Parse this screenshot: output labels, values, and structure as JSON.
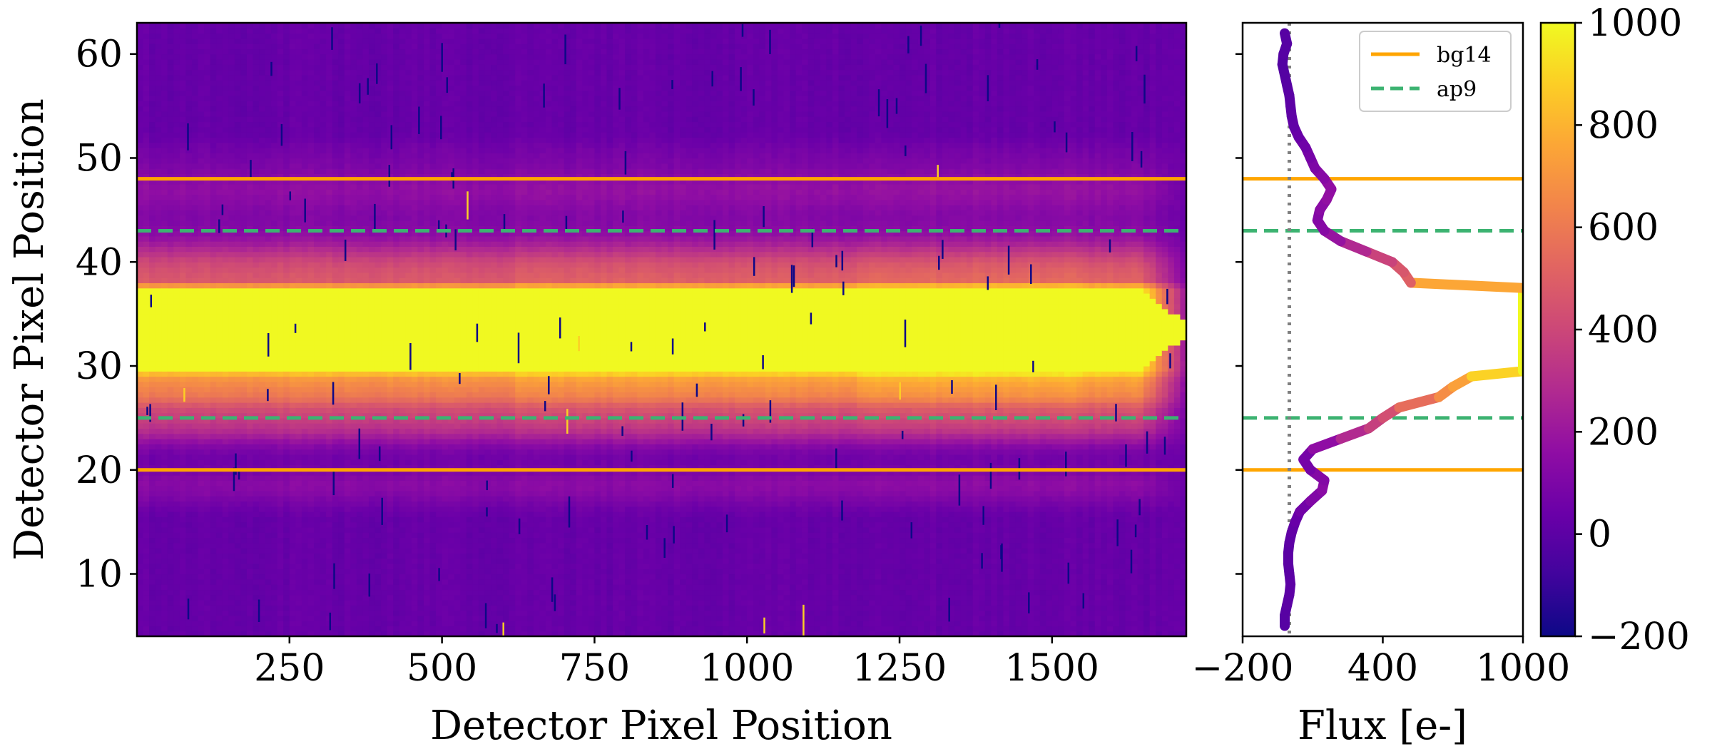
{
  "chart_data": [
    {
      "type": "heatmap",
      "xlabel": "Detector Pixel Position",
      "ylabel": "Detector Pixel Position",
      "xlim": [
        0,
        1720
      ],
      "ylim": [
        4,
        63
      ],
      "xticks": [
        250,
        500,
        750,
        1000,
        1250,
        1500
      ],
      "yticks": [
        10,
        20,
        30,
        40,
        50,
        60
      ],
      "colormap": "plasma",
      "color_range": [
        -200,
        1000
      ],
      "background_level": 30,
      "source_rows": {
        "center": 33.5,
        "saturated_min": 29.5,
        "saturated_max": 37.5
      },
      "column_steps": [
        620,
        1180,
        1550
      ],
      "horizontal_lines": [
        {
          "y": 48,
          "style": "solid",
          "color": "#ffa500"
        },
        {
          "y": 43,
          "style": "dashed",
          "color": "#3cb371"
        },
        {
          "y": 25,
          "style": "dashed",
          "color": "#3cb371"
        },
        {
          "y": 20,
          "style": "solid",
          "color": "#ffa500"
        }
      ]
    },
    {
      "type": "line",
      "xlabel": "Flux [e-]",
      "ylabel": "",
      "xlim": [
        -200,
        1000
      ],
      "ylim": [
        4,
        63
      ],
      "xticks": [
        -200,
        400,
        1000
      ],
      "xtick_labels": [
        "−200",
        "400",
        "1000"
      ],
      "yticks": [
        10,
        20,
        30,
        40,
        50,
        60
      ],
      "vertical_reference": {
        "x": 0,
        "style": "dotted",
        "color": "#808080"
      },
      "profile": {
        "y": [
          5,
          6,
          7,
          8,
          9,
          10,
          11,
          12,
          13,
          14,
          15,
          16,
          17,
          18,
          19,
          20,
          21,
          22,
          23,
          24,
          25,
          26,
          27,
          28,
          29,
          29.5,
          37.5,
          38,
          39,
          40,
          41,
          42,
          43,
          44,
          45,
          46,
          47,
          48,
          49,
          50,
          51,
          52,
          53,
          54,
          55,
          56,
          57,
          58,
          59,
          60,
          61,
          62
        ],
        "flux": [
          -20,
          -20,
          -10,
          0,
          5,
          0,
          -5,
          -5,
          0,
          10,
          25,
          45,
          90,
          140,
          150,
          90,
          60,
          100,
          220,
          340,
          400,
          470,
          640,
          700,
          780,
          1000,
          1000,
          520,
          490,
          440,
          330,
          220,
          150,
          120,
          130,
          160,
          180,
          150,
          110,
          90,
          70,
          40,
          20,
          10,
          5,
          0,
          -10,
          -20,
          -30,
          -25,
          -10,
          -20
        ]
      },
      "horizontal_lines": [
        {
          "y": 48,
          "style": "solid",
          "color": "#ffa500"
        },
        {
          "y": 43,
          "style": "dashed",
          "color": "#3cb371"
        },
        {
          "y": 25,
          "style": "dashed",
          "color": "#3cb371"
        },
        {
          "y": 20,
          "style": "solid",
          "color": "#ffa500"
        }
      ],
      "legend": {
        "placement": "top-right",
        "entries": [
          {
            "label": "bg14",
            "style": "solid",
            "color": "#ffa500"
          },
          {
            "label": "ap9",
            "style": "dashed",
            "color": "#3cb371"
          }
        ]
      }
    }
  ],
  "colorbar": {
    "range": [
      -200,
      1000
    ],
    "ticks": [
      1000,
      800,
      600,
      400,
      200,
      0,
      -200
    ],
    "tick_labels": [
      "1000",
      "800",
      "600",
      "400",
      "200",
      "0",
      "−200"
    ]
  }
}
